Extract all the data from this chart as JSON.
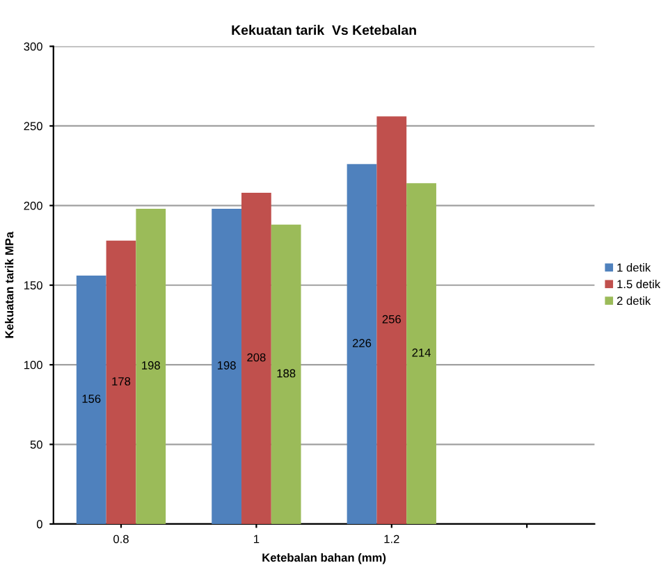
{
  "chart_data": {
    "type": "bar",
    "title": "Kekuatan tarik  Vs Ketebalan",
    "xlabel": "Ketebalan bahan (mm)",
    "ylabel": "Kekuatan tarik MPa",
    "categories": [
      "0.8",
      "1",
      "1.2",
      null
    ],
    "series": [
      {
        "name": "1 detik",
        "color": "#4f81bd",
        "values": [
          156,
          198,
          226,
          null
        ]
      },
      {
        "name": "1.5 detik",
        "color": "#c0504d",
        "values": [
          178,
          208,
          256,
          null
        ]
      },
      {
        "name": "2 detik",
        "color": "#9bbb59",
        "values": [
          198,
          188,
          214,
          null
        ]
      }
    ],
    "ylim": [
      0,
      300
    ],
    "yticks": [
      0,
      50,
      100,
      150,
      200,
      250,
      300
    ],
    "grid": "y",
    "legend": "right",
    "data_labels": true
  }
}
